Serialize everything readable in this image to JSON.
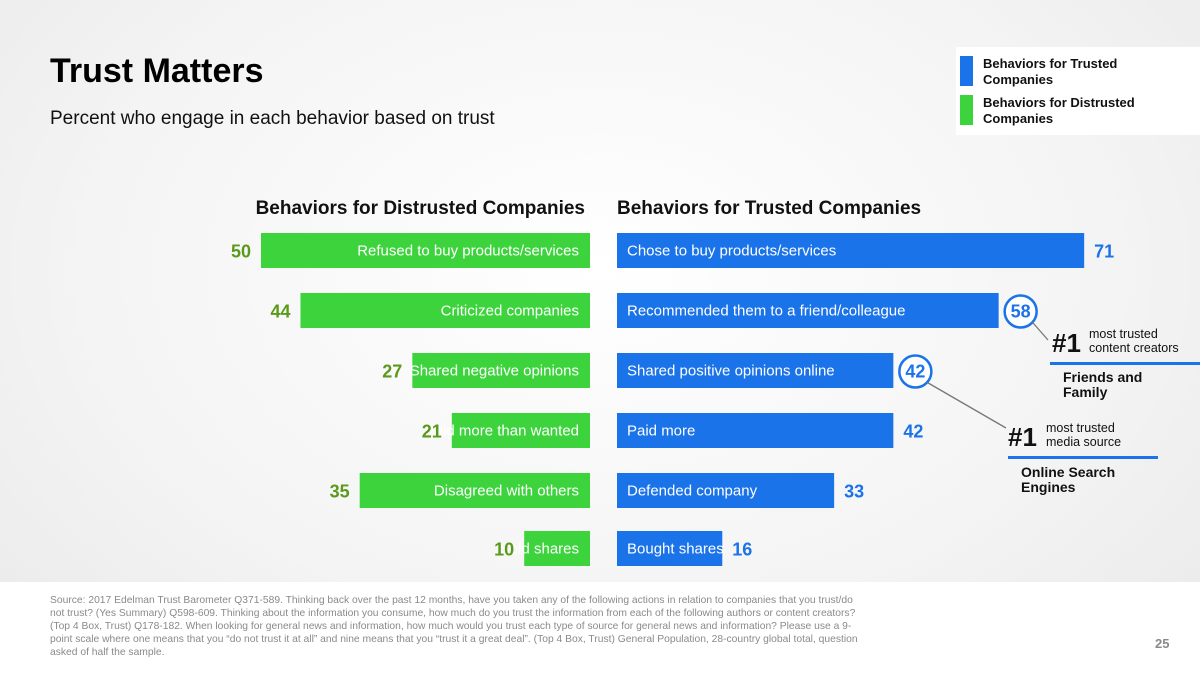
{
  "title": "Trust Matters",
  "subtitle": "Percent who engage in each behavior based on trust",
  "legend": [
    {
      "label": "Behaviors for Trusted Companies",
      "color": "#1a73e8"
    },
    {
      "label": "Behaviors for Distrusted Companies",
      "color": "#3dd33d"
    }
  ],
  "colors": {
    "trusted": "#1a73e8",
    "distrusted": "#3dd33d",
    "trusted_value": "#1a73e8",
    "distrusted_value": "#5a9a1a"
  },
  "chart_data": {
    "type": "bar",
    "title": "",
    "xlabel": "",
    "ylabel": "",
    "panels": [
      {
        "name": "Behaviors for Distrusted Companies",
        "categories": [
          "Refused to buy products/services",
          "Criticized companies",
          "Shared negative opinions",
          "Paid more than wanted",
          "Disagreed with others",
          "Sold shares"
        ],
        "values": [
          50,
          44,
          27,
          21,
          35,
          10
        ]
      },
      {
        "name": "Behaviors for Trusted Companies",
        "categories": [
          "Chose to buy products/services",
          "Recommended them to a friend/colleague",
          "Shared positive opinions online",
          "Paid more",
          "Defended company",
          "Bought shares"
        ],
        "values": [
          71,
          58,
          42,
          42,
          33,
          16
        ]
      }
    ],
    "annotations": [
      {
        "rank": "#1",
        "line1": "most trusted",
        "line2": "content creators",
        "source_line1": "Friends and",
        "source_line2": "Family",
        "value": "58"
      },
      {
        "rank": "#1",
        "line1": "most trusted",
        "line2": "media source",
        "source_line1": "Online Search",
        "source_line2": "Engines",
        "value": "42"
      }
    ]
  },
  "footer": {
    "source": "Source: 2017 Edelman Trust Barometer Q371-589. Thinking back over the past 12 months, have you taken any of the following actions in relation to companies that you trust/do not trust? (Yes Summary) Q598-609. Thinking about the information you consume, how much do you trust the information from each of the following authors or content creators? (Top 4 Box, Trust) Q178-182. When looking for general news and information, how much would you trust each type of source for general news and information? Please use a 9-point scale where one means that you “do not trust it at all” and nine means that you “trust it a great deal”. (Top 4 Box, Trust) General Population, 28-country global total, question asked of half the sample.",
    "page": "25"
  }
}
